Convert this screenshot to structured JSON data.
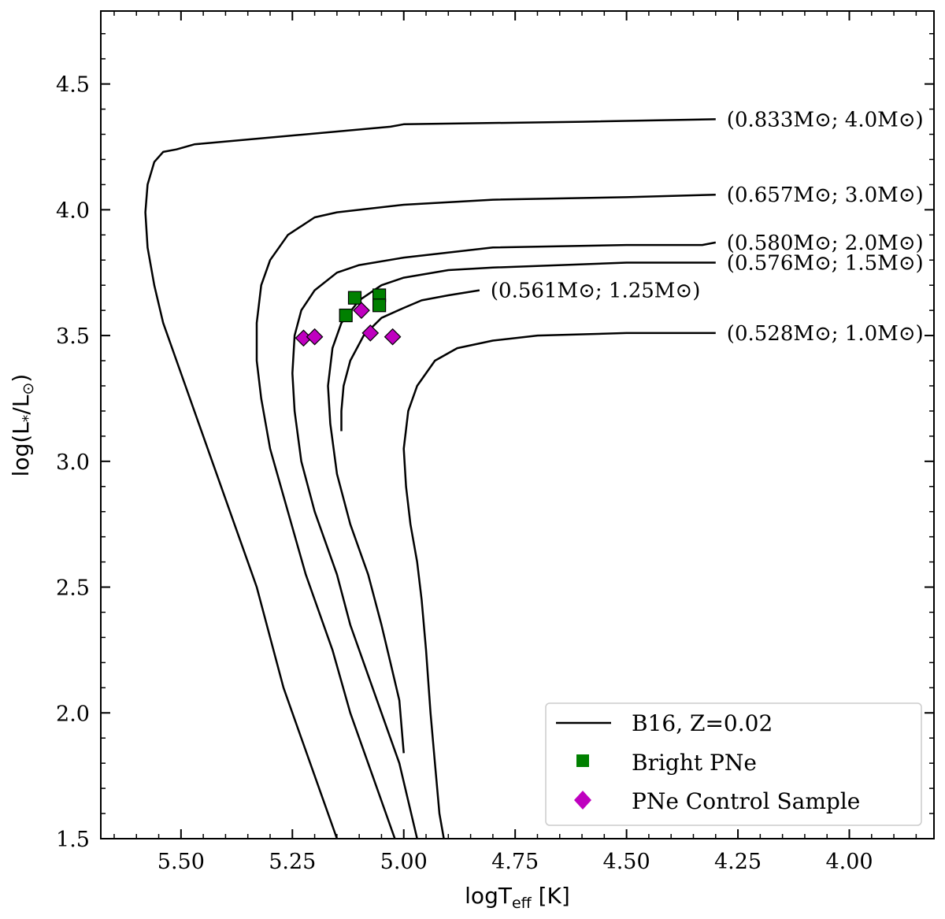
{
  "chart_data": {
    "type": "line",
    "xlabel": "logT_eff [K]",
    "ylabel": "log(L*/L⊙)",
    "xlim": [
      5.68,
      3.81
    ],
    "ylim": [
      1.5,
      4.79
    ],
    "x_ticks": [
      5.5,
      5.25,
      5.0,
      4.75,
      4.5,
      4.25,
      4.0
    ],
    "x_tick_labels": [
      "5.50",
      "5.25",
      "5.00",
      "4.75",
      "4.50",
      "4.25",
      "4.00"
    ],
    "y_ticks": [
      1.5,
      2.0,
      2.5,
      3.0,
      3.5,
      4.0,
      4.5
    ],
    "y_tick_labels": [
      "1.5",
      "2.0",
      "2.5",
      "3.0",
      "3.5",
      "4.0",
      "4.5"
    ],
    "x_inverted": true,
    "grid": false,
    "legend_position": "bottom-right",
    "series": [
      {
        "name": "(0.833M⊙; 4.0M⊙)",
        "kind": "track",
        "points": [
          [
            4.3,
            4.36
          ],
          [
            4.6,
            4.35
          ],
          [
            5.0,
            4.34
          ],
          [
            5.03,
            4.33
          ],
          [
            5.47,
            4.26
          ],
          [
            5.51,
            4.24
          ],
          [
            5.54,
            4.23
          ],
          [
            5.56,
            4.19
          ],
          [
            5.575,
            4.1
          ],
          [
            5.58,
            3.99
          ],
          [
            5.575,
            3.85
          ],
          [
            5.56,
            3.7
          ],
          [
            5.54,
            3.55
          ],
          [
            5.49,
            3.3
          ],
          [
            5.43,
            3.0
          ],
          [
            5.37,
            2.7
          ],
          [
            5.34,
            2.55
          ],
          [
            5.33,
            2.5
          ],
          [
            5.3,
            2.3
          ],
          [
            5.27,
            2.1
          ],
          [
            5.25,
            2.0
          ],
          [
            5.18,
            1.65
          ],
          [
            5.15,
            1.5
          ]
        ]
      },
      {
        "name": "(0.657M⊙; 3.0M⊙)",
        "kind": "track",
        "points": [
          [
            4.3,
            4.06
          ],
          [
            4.5,
            4.05
          ],
          [
            4.8,
            4.04
          ],
          [
            5.0,
            4.02
          ],
          [
            5.15,
            3.99
          ],
          [
            5.2,
            3.97
          ],
          [
            5.26,
            3.9
          ],
          [
            5.3,
            3.8
          ],
          [
            5.32,
            3.7
          ],
          [
            5.33,
            3.55
          ],
          [
            5.33,
            3.4
          ],
          [
            5.32,
            3.25
          ],
          [
            5.3,
            3.05
          ],
          [
            5.26,
            2.8
          ],
          [
            5.22,
            2.55
          ],
          [
            5.16,
            2.25
          ],
          [
            5.12,
            2.0
          ],
          [
            5.07,
            1.75
          ],
          [
            5.02,
            1.5
          ]
        ]
      },
      {
        "name": "(0.580M⊙; 2.0M⊙)",
        "kind": "track",
        "points": [
          [
            4.3,
            3.87
          ],
          [
            4.33,
            3.86
          ],
          [
            4.5,
            3.86
          ],
          [
            4.8,
            3.85
          ],
          [
            5.0,
            3.81
          ],
          [
            5.1,
            3.78
          ],
          [
            5.15,
            3.75
          ],
          [
            5.2,
            3.68
          ],
          [
            5.23,
            3.6
          ],
          [
            5.245,
            3.5
          ],
          [
            5.25,
            3.35
          ],
          [
            5.245,
            3.2
          ],
          [
            5.23,
            3.0
          ],
          [
            5.2,
            2.8
          ],
          [
            5.15,
            2.55
          ],
          [
            5.12,
            2.35
          ],
          [
            5.09,
            2.2
          ],
          [
            5.05,
            2.0
          ],
          [
            5.01,
            1.8
          ],
          [
            4.99,
            1.65
          ],
          [
            4.97,
            1.5
          ]
        ]
      },
      {
        "name": "(0.576M⊙; 1.5M⊙)",
        "kind": "track",
        "points": [
          [
            4.3,
            3.79
          ],
          [
            4.5,
            3.79
          ],
          [
            4.8,
            3.77
          ],
          [
            4.9,
            3.76
          ],
          [
            5.0,
            3.73
          ],
          [
            5.05,
            3.7
          ],
          [
            5.1,
            3.64
          ],
          [
            5.14,
            3.55
          ],
          [
            5.16,
            3.45
          ],
          [
            5.17,
            3.3
          ],
          [
            5.165,
            3.15
          ],
          [
            5.15,
            2.95
          ],
          [
            5.12,
            2.75
          ],
          [
            5.08,
            2.55
          ],
          [
            5.05,
            2.35
          ],
          [
            5.03,
            2.2
          ],
          [
            5.01,
            2.05
          ],
          [
            5.0,
            1.84
          ]
        ]
      },
      {
        "name": "(0.561M⊙; 1.25M⊙)",
        "kind": "track",
        "points": [
          [
            4.83,
            3.68
          ],
          [
            4.9,
            3.66
          ],
          [
            4.96,
            3.64
          ],
          [
            5.0,
            3.61
          ],
          [
            5.05,
            3.57
          ],
          [
            5.09,
            3.5
          ],
          [
            5.12,
            3.4
          ],
          [
            5.135,
            3.3
          ],
          [
            5.14,
            3.2
          ],
          [
            5.14,
            3.12
          ]
        ]
      },
      {
        "name": "(0.528M⊙; 1.0M⊙)",
        "kind": "track",
        "points": [
          [
            4.3,
            3.51
          ],
          [
            4.5,
            3.51
          ],
          [
            4.7,
            3.5
          ],
          [
            4.8,
            3.48
          ],
          [
            4.88,
            3.45
          ],
          [
            4.93,
            3.4
          ],
          [
            4.97,
            3.3
          ],
          [
            4.99,
            3.2
          ],
          [
            5.0,
            3.05
          ],
          [
            4.995,
            2.9
          ],
          [
            4.985,
            2.75
          ],
          [
            4.97,
            2.6
          ],
          [
            4.96,
            2.45
          ],
          [
            4.95,
            2.25
          ],
          [
            4.94,
            2.0
          ],
          [
            4.93,
            1.8
          ],
          [
            4.92,
            1.6
          ],
          [
            4.91,
            1.5
          ]
        ]
      }
    ],
    "markers": [
      {
        "name": "Bright PNe",
        "shape": "square",
        "points": [
          [
            5.11,
            3.65
          ],
          [
            5.13,
            3.58
          ],
          [
            5.055,
            3.66
          ],
          [
            5.055,
            3.62
          ]
        ]
      },
      {
        "name": "PNe Control Sample",
        "shape": "diamond",
        "points": [
          [
            5.225,
            3.49
          ],
          [
            5.2,
            3.495
          ],
          [
            5.095,
            3.6
          ],
          [
            5.075,
            3.51
          ],
          [
            5.025,
            3.495
          ]
        ]
      }
    ],
    "legend": [
      {
        "label": "B16, Z=0.02",
        "kind": "line",
        "color": "#000000"
      },
      {
        "label": "Bright PNe",
        "kind": "square",
        "color": "#008000"
      },
      {
        "label": "PNe Control Sample",
        "kind": "diamond",
        "color": "#bf00bf"
      }
    ]
  },
  "colors": {
    "track": "#000000",
    "bright": "#008000",
    "control": "#bf00bf",
    "marker_edge": "#000000",
    "legend_border": "#cccccc"
  }
}
